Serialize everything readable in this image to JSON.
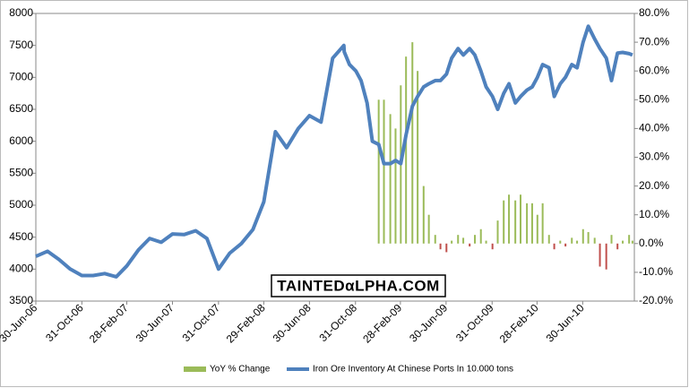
{
  "chart_data": {
    "type": "bar-line",
    "x": [
      "2006-06-30",
      "2006-07-31",
      "2006-08-31",
      "2006-09-30",
      "2006-10-31",
      "2006-11-30",
      "2006-12-31",
      "2007-01-31",
      "2007-02-28",
      "2007-03-31",
      "2007-04-30",
      "2007-05-31",
      "2007-06-30",
      "2007-07-31",
      "2007-08-31",
      "2007-09-30",
      "2007-10-31",
      "2007-11-30",
      "2007-12-31",
      "2008-01-31",
      "2008-02-29",
      "2008-03-31",
      "2008-04-30",
      "2008-05-31",
      "2008-06-30",
      "2008-07-31",
      "2008-08-31",
      "2008-09-30",
      "2008-10-01",
      "2008-10-15",
      "2008-11-01",
      "2008-11-15",
      "2008-12-01",
      "2008-12-15",
      "2009-01-01",
      "2009-01-15",
      "2009-02-01",
      "2009-02-15",
      "2009-03-01",
      "2009-03-15",
      "2009-04-01",
      "2009-04-15",
      "2009-05-01",
      "2009-05-15",
      "2009-06-01",
      "2009-06-15",
      "2009-07-01",
      "2009-07-15",
      "2009-08-01",
      "2009-08-15",
      "2009-09-01",
      "2009-09-15",
      "2009-10-01",
      "2009-10-15",
      "2009-11-01",
      "2009-11-15",
      "2009-12-01",
      "2009-12-15",
      "2010-01-01",
      "2010-01-15",
      "2010-02-01",
      "2010-02-15",
      "2010-03-01",
      "2010-03-15",
      "2010-04-01",
      "2010-04-15",
      "2010-05-01",
      "2010-05-15",
      "2010-06-01",
      "2010-06-15",
      "2010-07-01",
      "2010-07-15",
      "2010-08-01",
      "2010-08-15",
      "2010-09-01",
      "2010-09-15",
      "2010-10-01",
      "2010-10-15",
      "2010-11-01",
      "2010-11-10"
    ],
    "xlim": [
      "2006-06-30",
      "2010-11-15"
    ],
    "xticks": [
      {
        "value": "2006-06-30",
        "label": "30-Jun-06"
      },
      {
        "value": "2006-10-31",
        "label": "31-Oct-06"
      },
      {
        "value": "2007-02-28",
        "label": "28-Feb-07"
      },
      {
        "value": "2007-06-30",
        "label": "30-Jun-07"
      },
      {
        "value": "2007-10-31",
        "label": "31-Oct-07"
      },
      {
        "value": "2008-02-29",
        "label": "29-Feb-08"
      },
      {
        "value": "2008-06-30",
        "label": "30-Jun-08"
      },
      {
        "value": "2008-10-31",
        "label": "31-Oct-08"
      },
      {
        "value": "2009-02-28",
        "label": "28-Feb-09"
      },
      {
        "value": "2009-06-30",
        "label": "30-Jun-09"
      },
      {
        "value": "2009-10-31",
        "label": "31-Oct-09"
      },
      {
        "value": "2010-02-28",
        "label": "28-Feb-10"
      },
      {
        "value": "2010-06-30",
        "label": "30-Jun-10"
      }
    ],
    "ylim": [
      3500,
      8000
    ],
    "yticks": [
      3500,
      4000,
      4500,
      5000,
      5500,
      6000,
      6500,
      7000,
      7500,
      8000
    ],
    "y2lim": [
      -20,
      80
    ],
    "y2ticks": [
      {
        "value": -20,
        "label": "-20.0%"
      },
      {
        "value": -10,
        "label": "-10.0%"
      },
      {
        "value": 0,
        "label": "0.0%"
      },
      {
        "value": 10,
        "label": "10.0%"
      },
      {
        "value": 20,
        "label": "20.0%"
      },
      {
        "value": 30,
        "label": "30.0%"
      },
      {
        "value": 40,
        "label": "40.0%"
      },
      {
        "value": 50,
        "label": "50.0%"
      },
      {
        "value": 60,
        "label": "60.0%"
      },
      {
        "value": 70,
        "label": "70.0%"
      },
      {
        "value": 80,
        "label": "80.0%"
      }
    ],
    "series": [
      {
        "name": "YoY % Change",
        "type": "bar",
        "axis": "y2",
        "color": "#9bbb59",
        "negative_color": "#c0504d",
        "values": [
          null,
          null,
          null,
          null,
          null,
          null,
          null,
          null,
          null,
          null,
          null,
          null,
          null,
          null,
          null,
          null,
          null,
          null,
          null,
          null,
          null,
          null,
          null,
          null,
          null,
          null,
          null,
          null,
          null,
          null,
          null,
          null,
          null,
          null,
          50,
          50,
          45,
          40,
          55,
          65,
          70,
          60,
          20,
          10,
          3,
          -2,
          -3,
          1,
          3,
          2,
          -1,
          3,
          5,
          1,
          -2,
          8,
          15,
          17,
          15,
          17,
          14,
          14,
          10,
          14,
          3,
          -2,
          1,
          -1,
          2,
          1,
          5,
          4,
          2,
          -8,
          -9,
          3,
          -2,
          1,
          3,
          1
        ]
      },
      {
        "name": "Iron Ore Inventory At Chinese Ports In 10.000 tons",
        "type": "line",
        "color": "#4f81bd",
        "values": [
          4200,
          4280,
          4150,
          4000,
          3900,
          3900,
          3930,
          3880,
          4050,
          4300,
          4480,
          4420,
          4550,
          4540,
          4600,
          4480,
          4000,
          4250,
          4400,
          4620,
          5050,
          6150,
          5900,
          6200,
          6400,
          6300,
          7300,
          7500,
          7400,
          7200,
          7100,
          6950,
          6600,
          6000,
          5950,
          5650,
          5650,
          5700,
          5650,
          6100,
          6550,
          6700,
          6850,
          6900,
          6950,
          6950,
          7050,
          7300,
          7450,
          7350,
          7450,
          7350,
          7100,
          6850,
          6700,
          6500,
          6750,
          6900,
          6600,
          6700,
          6800,
          6850,
          7000,
          7200,
          7150,
          6700,
          6900,
          7000,
          7200,
          7150,
          7550,
          7800,
          7600,
          7450,
          7300,
          6950,
          7380,
          7390,
          7370,
          7350
        ]
      }
    ],
    "watermark": "TAINTEDαLPHA.COM"
  }
}
